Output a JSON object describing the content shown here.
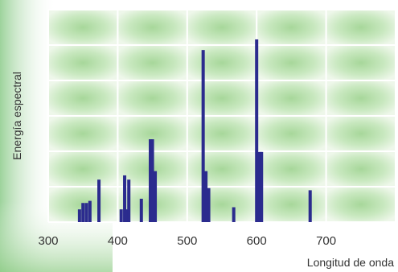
{
  "chart_data": {
    "type": "bar",
    "title": "",
    "xlabel": "Longitud de onda",
    "ylabel": "Energía espectral",
    "xlim": [
      300,
      800
    ],
    "ylim": [
      0,
      1
    ],
    "x_ticks": [
      "300",
      "400",
      "500",
      "600",
      "700"
    ],
    "grid": true,
    "legend": "none",
    "colors": {
      "bars": "#2b2b8e",
      "grid": "#ffffff",
      "panel": "#eef7ea",
      "cell_glow": "#a7d79a",
      "outer_glow": "#7cc47a",
      "text": "#333333"
    },
    "series": [
      {
        "x": [
          345,
          350,
          355,
          360,
          373,
          405,
          410,
          413,
          416,
          434,
          447,
          450,
          454,
          523,
          527,
          531,
          567,
          600,
          603,
          606,
          607,
          677
        ],
        "values": [
          0.06,
          0.09,
          0.09,
          0.1,
          0.2,
          0.06,
          0.22,
          0.06,
          0.2,
          0.11,
          0.39,
          0.39,
          0.24,
          0.81,
          0.24,
          0.16,
          0.07,
          0.86,
          0.33,
          0.33,
          0.33,
          0.15
        ]
      }
    ]
  }
}
